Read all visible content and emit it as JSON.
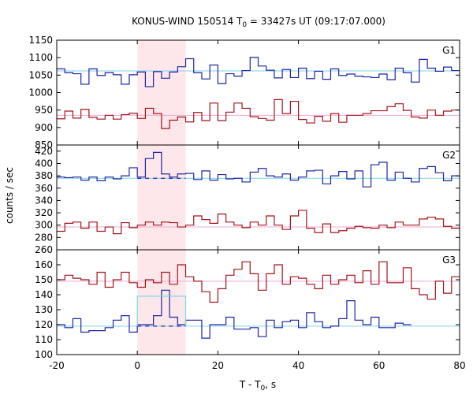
{
  "colors": {
    "blue": "#1f24a6",
    "darkred": "#a3141b",
    "cyan": "#7fd3ea",
    "pink": "#f0a8d6",
    "shade": "#fde7ea"
  },
  "chart_data": {
    "type": "line",
    "title_main": "KONUS-WIND 150514 T",
    "title_sub": "0",
    "title_rest": " = 33427s UT (09:17:07.000)",
    "xlabel_main": "T - T",
    "xlabel_sub": "0",
    "xlabel_rest": ", s",
    "ylabel": "counts / sec",
    "xlim": [
      -20,
      80
    ],
    "xticks": [
      -20,
      0,
      20,
      40,
      60,
      80
    ],
    "shaded_interval": [
      0,
      12
    ],
    "panels": [
      {
        "label": "G1",
        "ylim": [
          850,
          1150
        ],
        "yticks": [
          850,
          900,
          950,
          1000,
          1050,
          1100,
          1150
        ],
        "step": 2,
        "series": [
          {
            "name": "upper",
            "color": "blue",
            "values": [
              1068,
              1057,
              1054,
              1024,
              1068,
              1049,
              1057,
              1051,
              1024,
              1051,
              1059,
              1017,
              1060,
              1041,
              1059,
              1074,
              1097,
              1057,
              1039,
              1079,
              1026,
              1054,
              1047,
              1063,
              1101,
              1076,
              1064,
              1042,
              1066,
              1043,
              1070,
              1040,
              1061,
              1038,
              1068,
              1049,
              1053,
              1047,
              1045,
              1043,
              1053,
              1037,
              1070,
              1057,
              1030,
              1095,
              1070,
              1061,
              1073,
              1063
            ]
          },
          {
            "name": "lower",
            "color": "darkred",
            "values": [
              925,
              947,
              927,
              952,
              929,
              924,
              935,
              924,
              937,
              941,
              926,
              955,
              940,
              897,
              921,
              930,
              916,
              943,
              920,
              970,
              920,
              944,
              970,
              955,
              931,
              926,
              921,
              980,
              940,
              975,
              923,
              913,
              932,
              918,
              940,
              915,
              935,
              935,
              940,
              948,
              948,
              960,
              968,
              949,
              930,
              927,
              950,
              935,
              947,
              950
            ]
          }
        ],
        "fits": [
          {
            "color": "cyan",
            "value": 1062
          },
          {
            "color": "pink",
            "value": 935
          }
        ]
      },
      {
        "label": "G2",
        "ylim": [
          260,
          430
        ],
        "yticks": [
          260,
          280,
          300,
          320,
          340,
          360,
          380,
          400,
          420
        ],
        "step": 2,
        "series": [
          {
            "name": "upper",
            "color": "blue",
            "values": [
              378,
              377,
              378,
              373,
              378,
              372,
              378,
              375,
              380,
              393,
              378,
              408,
              418,
              383,
              378,
              383,
              384,
              374,
              388,
              373,
              382,
              375,
              376,
              370,
              386,
              392,
              380,
              378,
              383,
              373,
              378,
              388,
              389,
              367,
              380,
              387,
              375,
              388,
              362,
              398,
              402,
              373,
              386,
              376,
              370,
              392,
              395,
              385,
              372,
              380
            ]
          },
          {
            "name": "lower",
            "color": "darkred",
            "values": [
              290,
              303,
              305,
              295,
              305,
              290,
              297,
              286,
              304,
              296,
              300,
              305,
              300,
              305,
              304,
              297,
              300,
              315,
              309,
              303,
              318,
              305,
              300,
              296,
              305,
              300,
              315,
              300,
              293,
              315,
              324,
              295,
              288,
              302,
              288,
              291,
              295,
              298,
              296,
              295,
              300,
              296,
              305,
              300,
              300,
              310,
              313,
              310,
              298,
              295
            ]
          }
        ],
        "fits": [
          {
            "color": "cyan",
            "value": 376
          },
          {
            "color": "pink",
            "value": 297
          }
        ],
        "dashed": [
          {
            "color": "blue",
            "value": 376,
            "from": 0,
            "to": 12
          }
        ]
      },
      {
        "label": "G3",
        "ylim": [
          100,
          170
        ],
        "yticks": [
          100,
          110,
          120,
          130,
          140,
          150,
          160
        ],
        "step": 2,
        "series": [
          {
            "name": "upper",
            "color": "darkred",
            "values": [
              150,
              153,
              151,
              150,
              147,
              155,
              145,
              150,
              155,
              148,
              145,
              150,
              148,
              155,
              147,
              160,
              152,
              149,
              142,
              135,
              144,
              153,
              157,
              162,
              154,
              143,
              154,
              160,
              147,
              152,
              151,
              147,
              144,
              153,
              147,
              150,
              153,
              148,
              156,
              147,
              162,
              148,
              148,
              158,
              144,
              140,
              137,
              149,
              141,
              152
            ]
          },
          {
            "name": "lower",
            "color": "blue",
            "values": [
              120,
              118,
              124,
              115,
              116,
              116,
              118,
              123,
              126,
              115,
              120,
              120,
              126,
              143,
              125,
              120,
              123,
              123,
              111,
              120,
              120,
              125,
              117,
              117,
              118,
              112,
              123,
              118,
              122,
              123,
              118,
              128,
              122,
              118,
              119,
              124,
              136,
              123,
              120,
              125,
              118,
              118,
              121,
              120
            ]
          }
        ],
        "fits": [
          {
            "color": "pink",
            "value": 149
          },
          {
            "color": "cyan",
            "value": 119
          }
        ],
        "dashed": [
          {
            "color": "blue",
            "value": 119,
            "from": 0,
            "to": 12
          }
        ],
        "raised": [
          {
            "color": "cyan",
            "value": 139,
            "from": 0,
            "to": 12
          }
        ]
      }
    ]
  }
}
